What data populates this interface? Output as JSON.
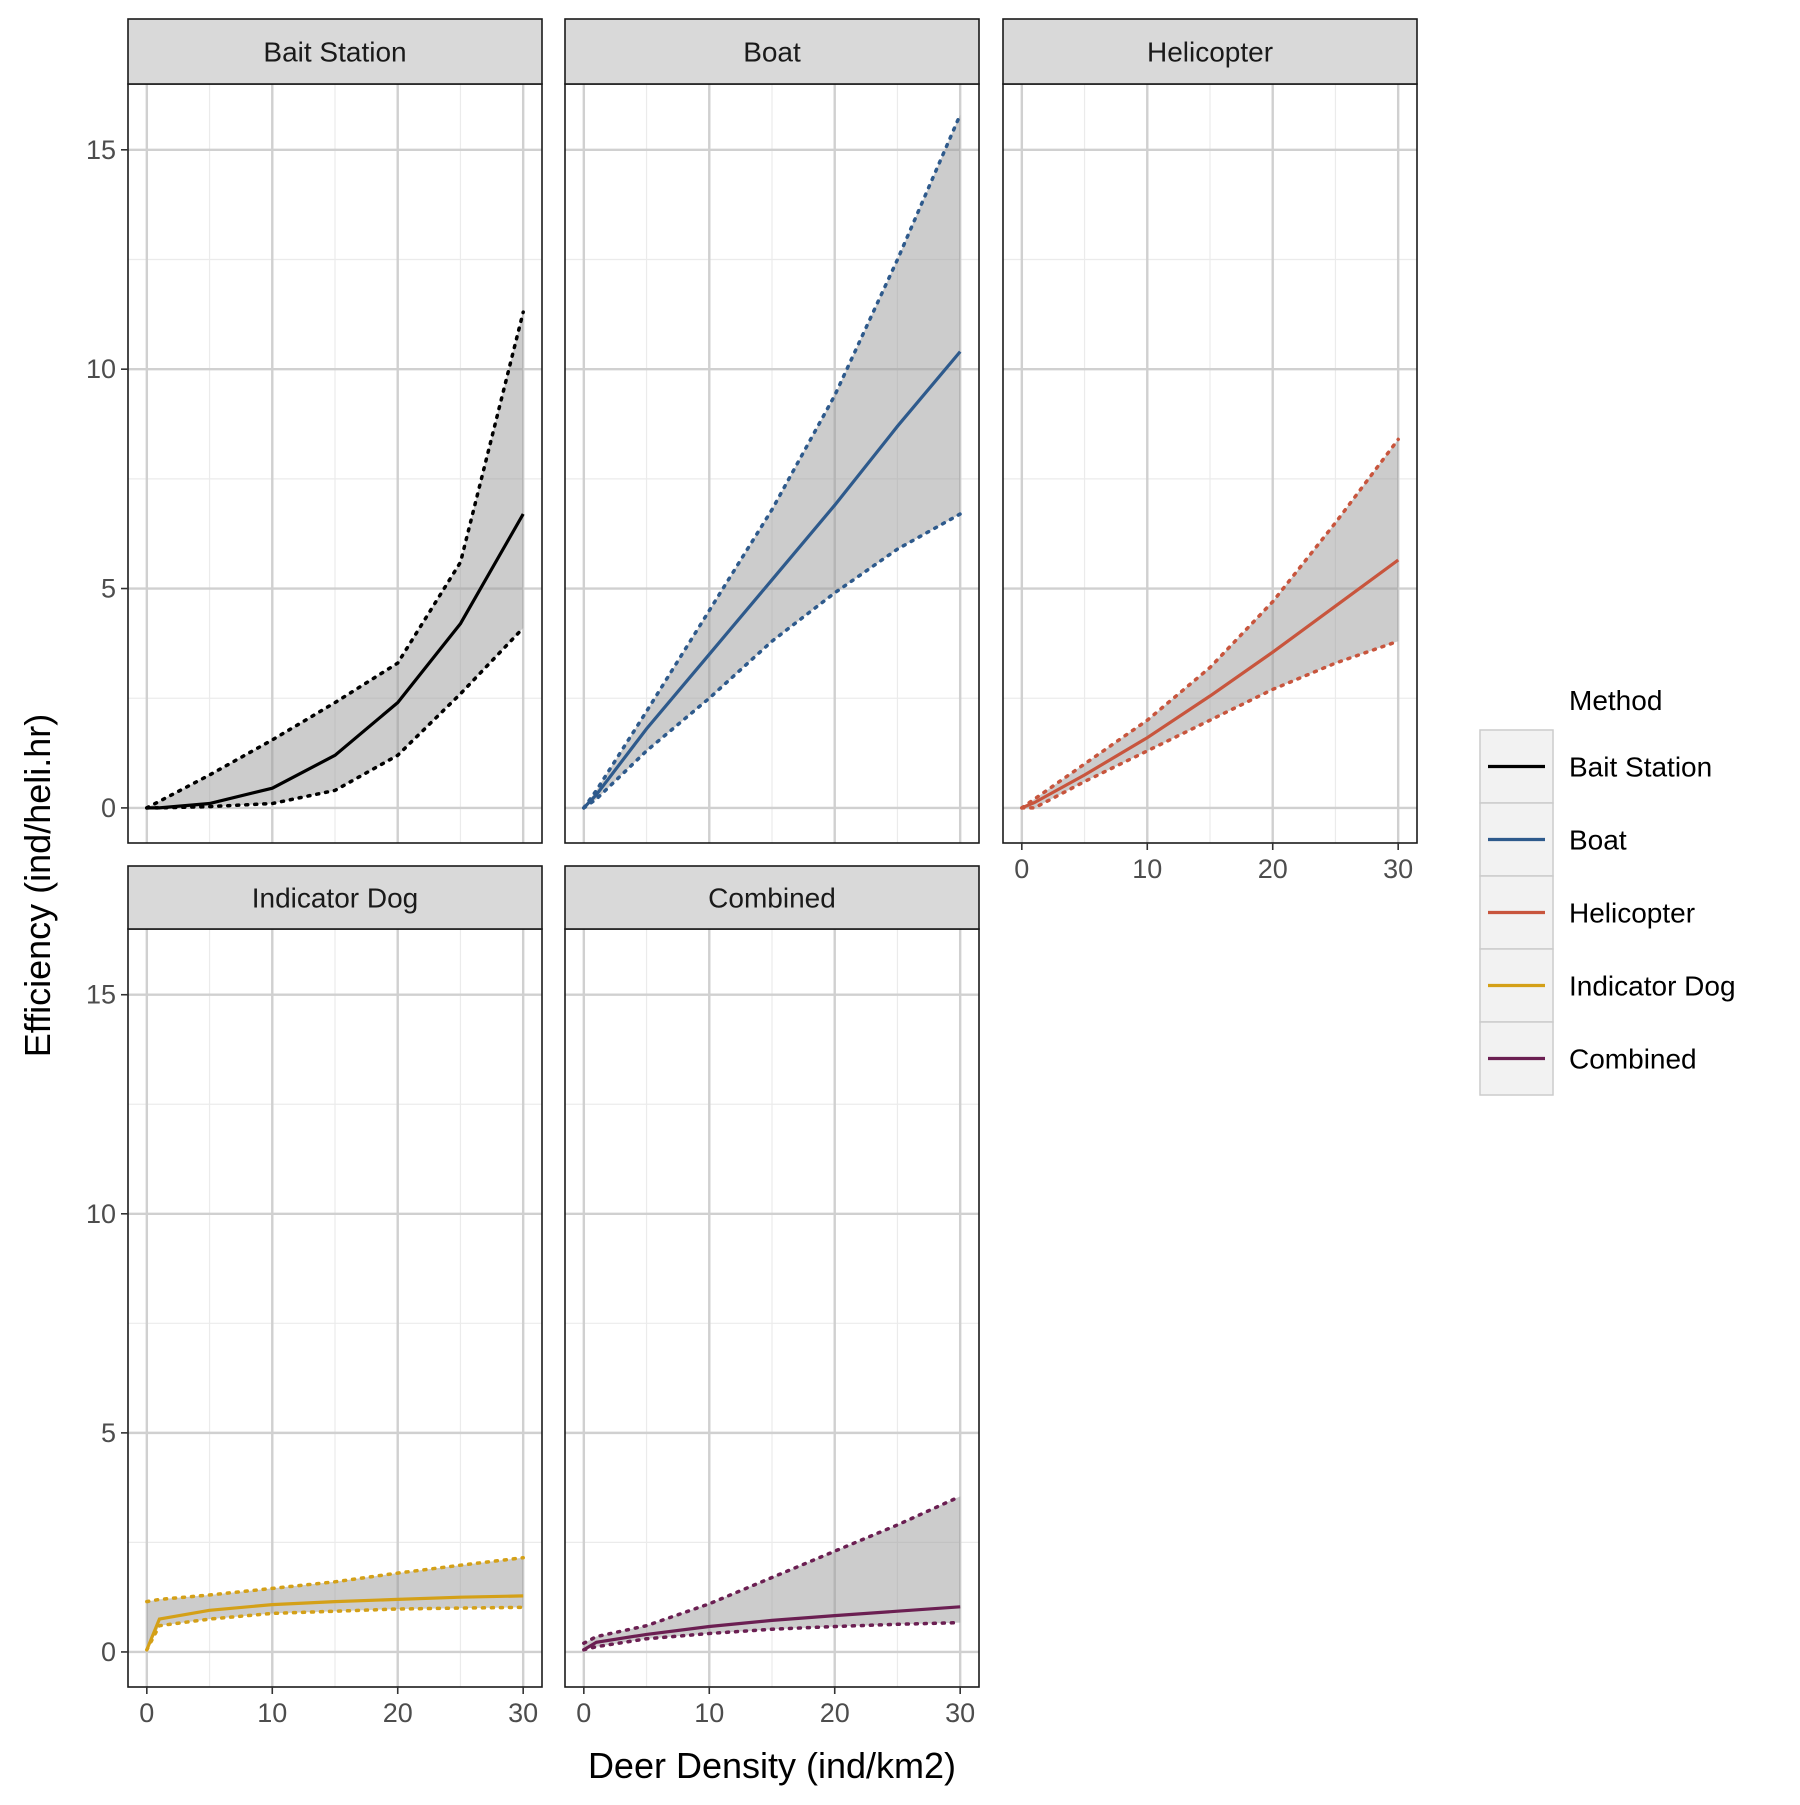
{
  "chart_data": {
    "type": "line",
    "layout": "faceted",
    "xlabel": "Deer Density (ind/km2)",
    "ylabel": "Efficiency (ind/heli.hr)",
    "xlim": [
      -1.5,
      31.5
    ],
    "ylim": [
      -0.8,
      16.5
    ],
    "x_ticks": [
      0,
      10,
      20,
      30
    ],
    "y_ticks": [
      0,
      5,
      10,
      15
    ],
    "grid": true,
    "band": "confidence interval (shaded grey, dotted bounds)",
    "legend": {
      "title": "Method",
      "position": "right",
      "entries": [
        {
          "label": "Bait Station",
          "color": "#000000"
        },
        {
          "label": "Boat",
          "color": "#2e5a8c"
        },
        {
          "label": "Helicopter",
          "color": "#c8553d"
        },
        {
          "label": "Indicator Dog",
          "color": "#d4a017"
        },
        {
          "label": "Combined",
          "color": "#6b1f52"
        }
      ]
    },
    "x": [
      0,
      1,
      5,
      10,
      15,
      20,
      25,
      30
    ],
    "series": [
      {
        "name": "Bait Station",
        "color": "#000000",
        "fit": [
          0,
          0.0,
          0.1,
          0.45,
          1.2,
          2.4,
          4.2,
          6.7
        ],
        "lower": [
          0,
          0.0,
          0.03,
          0.1,
          0.4,
          1.2,
          2.6,
          4.1
        ],
        "upper": [
          0,
          0.15,
          0.75,
          1.55,
          2.4,
          3.3,
          5.6,
          11.3
        ]
      },
      {
        "name": "Boat",
        "color": "#2e5a8c",
        "fit": [
          0,
          0.3,
          1.8,
          3.5,
          5.2,
          6.9,
          8.7,
          10.4
        ],
        "lower": [
          0,
          0.2,
          1.3,
          2.5,
          3.8,
          4.9,
          5.9,
          6.7
        ],
        "upper": [
          0,
          0.4,
          2.2,
          4.5,
          6.8,
          9.4,
          12.5,
          15.8
        ]
      },
      {
        "name": "Helicopter",
        "color": "#c8553d",
        "fit": [
          0,
          0.12,
          0.75,
          1.6,
          2.55,
          3.55,
          4.6,
          5.65
        ],
        "lower": [
          0,
          0.0,
          0.6,
          1.3,
          2.0,
          2.7,
          3.3,
          3.8
        ],
        "upper": [
          0,
          0.2,
          1.0,
          2.0,
          3.2,
          4.7,
          6.5,
          8.4
        ]
      },
      {
        "name": "Indicator Dog",
        "color": "#d4a017",
        "fit": [
          0.05,
          0.75,
          0.95,
          1.08,
          1.15,
          1.2,
          1.25,
          1.28
        ],
        "lower": [
          0.05,
          0.6,
          0.75,
          0.88,
          0.93,
          0.98,
          1.0,
          1.02
        ],
        "upper": [
          1.15,
          1.2,
          1.3,
          1.45,
          1.6,
          1.8,
          1.98,
          2.15
        ]
      },
      {
        "name": "Combined",
        "color": "#6b1f52",
        "fit": [
          0.05,
          0.22,
          0.4,
          0.58,
          0.72,
          0.83,
          0.93,
          1.03
        ],
        "lower": [
          0.05,
          0.12,
          0.3,
          0.42,
          0.52,
          0.58,
          0.63,
          0.67
        ],
        "upper": [
          0.2,
          0.35,
          0.6,
          1.1,
          1.7,
          2.3,
          2.9,
          3.55
        ]
      }
    ]
  }
}
